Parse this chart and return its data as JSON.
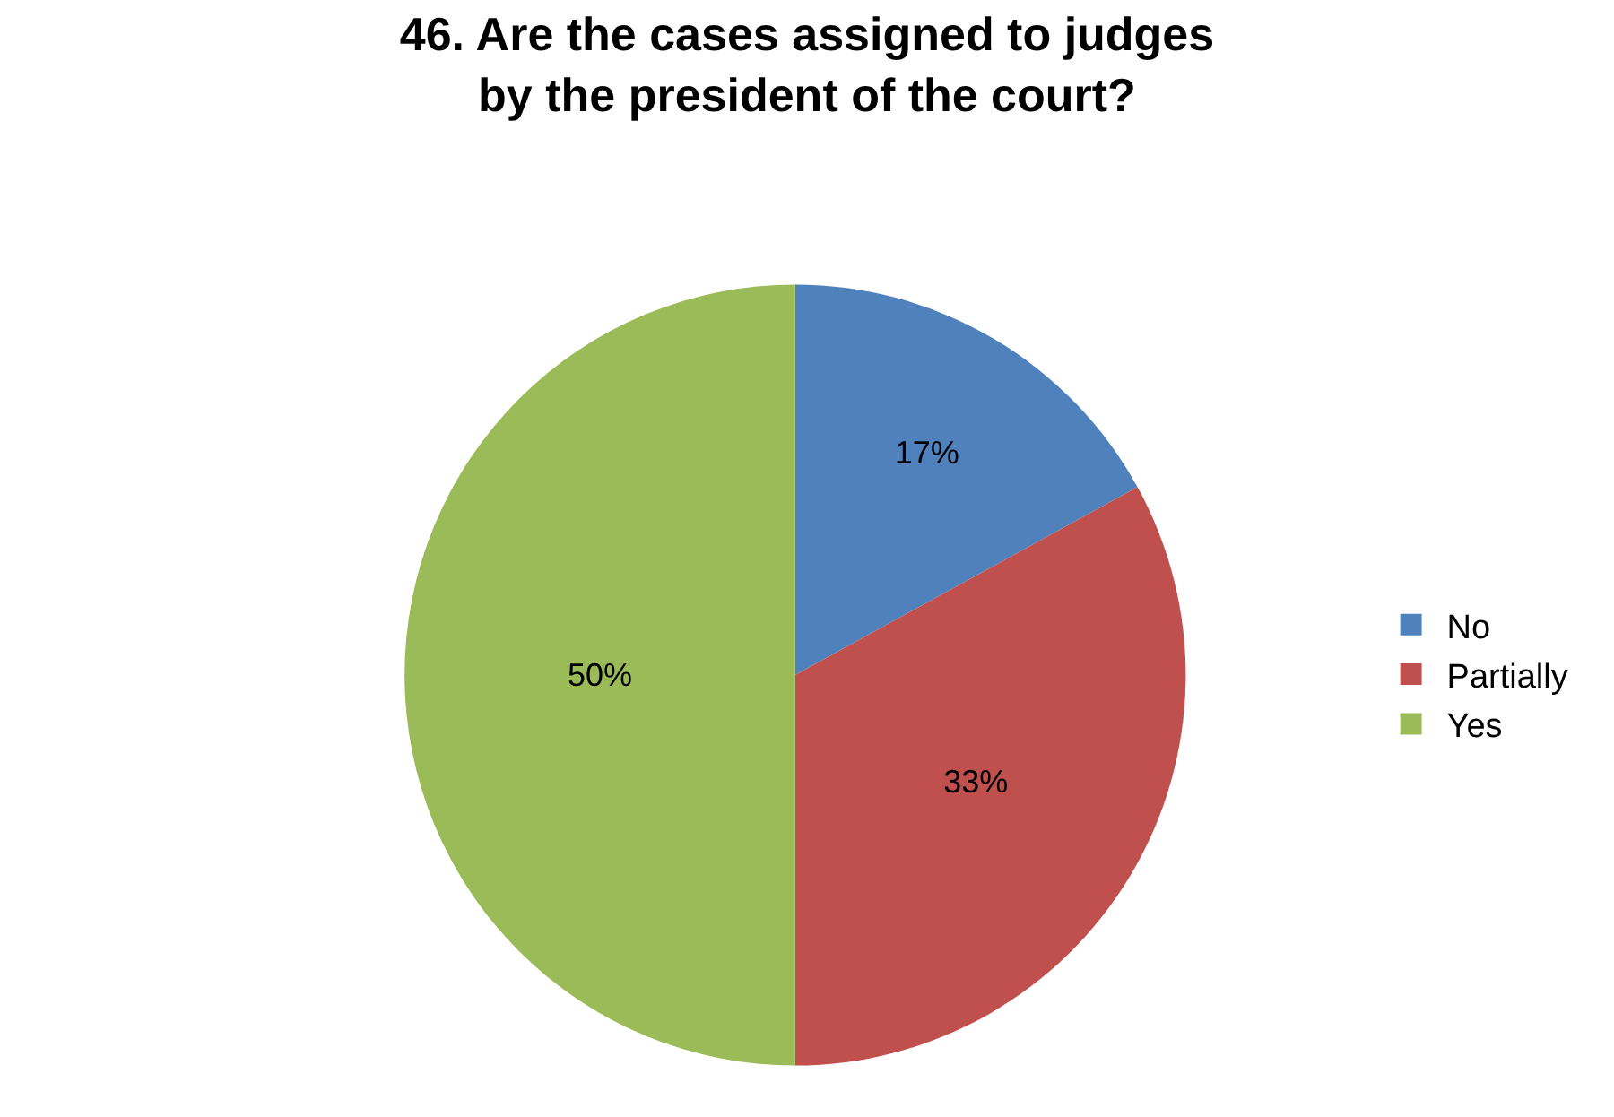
{
  "chart_data": {
    "type": "pie",
    "title": "46. Are the cases assigned to judges by the president of the court?",
    "categories": [
      "No",
      "Partially",
      "Yes"
    ],
    "values": [
      17,
      33,
      50
    ],
    "colors": [
      "#4f81bd",
      "#c0504d",
      "#9bbb59"
    ],
    "value_labels": [
      "17%",
      "33%",
      "50%"
    ],
    "legend": "right"
  }
}
